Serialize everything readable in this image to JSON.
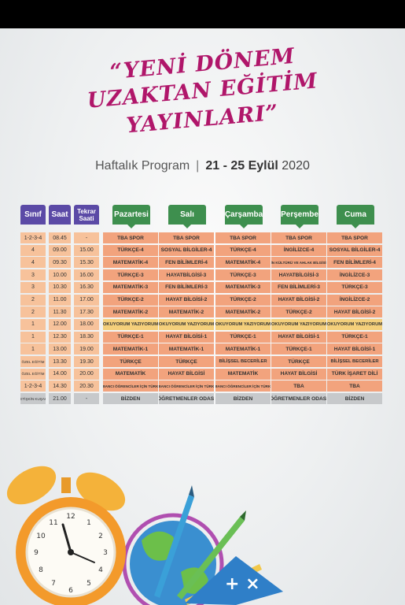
{
  "title": {
    "line1": "“YENİ DÖNEM",
    "line2": "UZAKTAN EĞİTİM",
    "line3": "YAYINLARI”"
  },
  "subtitle": {
    "program": "Haftalık Program",
    "separator": "|",
    "dates": "21 - 25 Eylül",
    "year": "2020"
  },
  "headers": {
    "sinif": "Sınıf",
    "saat": "Saat",
    "tekrar": "Tekrar Saati",
    "days": [
      "Pazartesi",
      "Salı",
      "Çarşamba",
      "Perşembe",
      "Cuma"
    ]
  },
  "rows": [
    {
      "sinif": "1-2-3-4",
      "saat": "08.45",
      "tekrar": "-",
      "cells": [
        "TBA SPOR",
        "TBA SPOR",
        "TBA SPOR",
        "TBA SPOR",
        "TBA SPOR"
      ]
    },
    {
      "sinif": "4",
      "saat": "09.00",
      "tekrar": "15.00",
      "cells": [
        "TÜRKÇE-4",
        "SOSYAL BİLGİLER-4",
        "TÜRKÇE-4",
        "İNGİLİZCE-4",
        "SOSYAL BİLGİLER-4"
      ]
    },
    {
      "sinif": "4",
      "saat": "09.30",
      "tekrar": "15.30",
      "cells": [
        "MATEMATİK-4",
        "FEN BİLİMLERİ-4",
        "MATEMATİK-4",
        "DİN KÜLTÜRÜ VE AHLAK BİLGİSİ-4",
        "FEN BİLİMLERİ-4"
      ]
    },
    {
      "sinif": "3",
      "saat": "10.00",
      "tekrar": "16.00",
      "cells": [
        "TÜRKÇE-3",
        "HAYATBİLGİSİ-3",
        "TÜRKÇE-3",
        "HAYATBİLGİSİ-3",
        "İNGİLİZCE-3"
      ]
    },
    {
      "sinif": "3",
      "saat": "10.30",
      "tekrar": "16.30",
      "cells": [
        "MATEMATİK-3",
        "FEN BİLİMLERİ-3",
        "MATEMATİK-3",
        "FEN BİLİMLERİ-3",
        "TÜRKÇE-3"
      ]
    },
    {
      "sinif": "2",
      "saat": "11.00",
      "tekrar": "17.00",
      "cells": [
        "TÜRKÇE-2",
        "HAYAT BİLGİSİ-2",
        "TÜRKÇE-2",
        "HAYAT BİLGİSİ-2",
        "İNGİLİZCE-2"
      ]
    },
    {
      "sinif": "2",
      "saat": "11.30",
      "tekrar": "17.30",
      "cells": [
        "MATEMATİK-2",
        "MATEMATİK-2",
        "MATEMATİK-2",
        "TÜRKÇE-2",
        "HAYAT BİLGİSİ-2"
      ]
    },
    {
      "sinif": "1",
      "saat": "12.00",
      "tekrar": "18.00",
      "cells": [
        "OKUYORUM YAZIYORUM",
        "OKUYORUM YAZIYORUM",
        "OKUYORUM YAZIYORUM",
        "OKUYORUM YAZIYORUM",
        "OKUYORUM YAZIYORUM"
      ]
    },
    {
      "sinif": "1",
      "saat": "12.30",
      "tekrar": "18.30",
      "cells": [
        "TÜRKÇE-1",
        "HAYAT BİLGİSİ-1",
        "TÜRKÇE-1",
        "HAYAT BİLGİSİ-1",
        "TÜRKÇE-1"
      ]
    },
    {
      "sinif": "1",
      "saat": "13.00",
      "tekrar": "19.00",
      "cells": [
        "MATEMATİK-1",
        "MATEMATİK-1",
        "MATEMATİK-1",
        "TÜRKÇE-1",
        "HAYAT BİLGİSİ-1"
      ]
    },
    {
      "sinif": "ÖZEL EĞİTİM",
      "saat": "13.30",
      "tekrar": "19.30",
      "cells": [
        "TÜRKÇE",
        "TÜRKÇE",
        "BİLİŞSEL BECERİLER",
        "TÜRKÇE",
        "BİLİŞSEL BECERİLER"
      ]
    },
    {
      "sinif": "ÖZEL EĞİTİM",
      "saat": "14.00",
      "tekrar": "20.00",
      "cells": [
        "MATEMATİK",
        "HAYAT BİLGİSİ",
        "MATEMATİK",
        "HAYAT BİLGİSİ",
        "TÜRK İŞARET DİLİ"
      ]
    },
    {
      "sinif": "1-2-3-4",
      "saat": "14.30",
      "tekrar": "20.30",
      "cells": [
        "YABANCI ÖĞRENCİLER İÇİN TÜRKÇE",
        "YABANCI ÖĞRENCİLER İÇİN TÜRKÇE",
        "YABANCI ÖĞRENCİLER İÇİN TÜRKÇE",
        "TBA",
        "TBA"
      ]
    },
    {
      "sinif": "YETİŞKİN KUŞAĞI",
      "saat": "21.00",
      "tekrar": "-",
      "cells": [
        "BİZDEN",
        "ÖĞRETMENLER ODASI",
        "BİZDEN",
        "ÖĞRETMENLER ODASI",
        "BİZDEN"
      ]
    }
  ],
  "colors": {
    "title": "#b0166a",
    "header_purple": "#5b4aa6",
    "header_green": "#3e8f4e",
    "cell_orange": "#f2a37d",
    "cell_yellow": "#f4cf7b",
    "cell_gray": "#c7c9cb"
  }
}
